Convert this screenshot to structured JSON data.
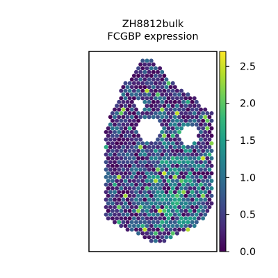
{
  "chart_data": {
    "type": "scatter",
    "subtype": "spatial-hexbin",
    "title_lines": [
      "ZH8812bulk",
      "FCGBP expression"
    ],
    "xlabel": "",
    "ylabel": "",
    "colormap": "viridis",
    "color_range": [
      0.0,
      2.7
    ],
    "colorbar_ticks": [
      "0.0",
      "0.5",
      "1.0",
      "1.5",
      "2.0",
      "2.5"
    ],
    "colorbar_tick_values": [
      0.0,
      0.5,
      1.0,
      1.5,
      2.0,
      2.5
    ],
    "show_axis_ticks": false,
    "grid": false,
    "colormap_stops": [
      "#440154",
      "#482878",
      "#3e4989",
      "#31688e",
      "#26828e",
      "#1f9e89",
      "#35b779",
      "#6ece58",
      "#b5de2b",
      "#fde725"
    ],
    "tissue_mask": {
      "outline_cols": [
        0.12,
        0.18,
        0.26,
        0.34,
        0.42,
        0.5,
        0.58,
        0.66,
        0.74,
        0.82,
        0.9,
        0.97
      ],
      "outline_top": [
        0.42,
        0.3,
        0.18,
        0.11,
        0.04,
        0.04,
        0.1,
        0.16,
        0.2,
        0.23,
        0.28,
        0.31
      ],
      "outline_bottom": [
        0.82,
        0.85,
        0.88,
        0.9,
        0.93,
        0.95,
        0.95,
        0.93,
        0.9,
        0.88,
        0.83,
        0.78
      ],
      "holes": [
        [
          0.47,
          0.39,
          0.08
        ],
        [
          0.78,
          0.42,
          0.06
        ],
        [
          0.39,
          0.27,
          0.03
        ]
      ],
      "high_region_center": [
        0.68,
        0.68
      ],
      "spot_count_note": "spots sampled on hex grid inside mask"
    }
  }
}
